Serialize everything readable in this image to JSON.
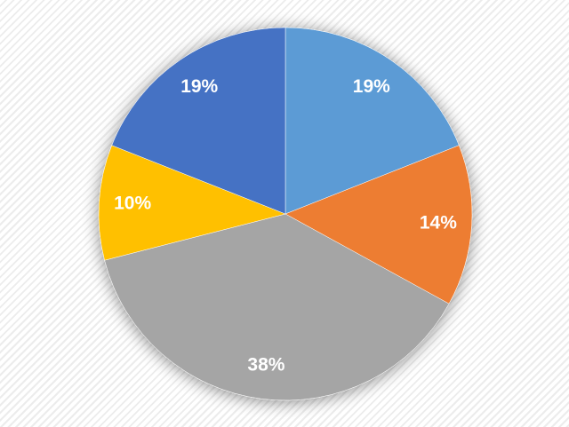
{
  "chart_data": {
    "type": "pie",
    "values": [
      19,
      14,
      38,
      10,
      19
    ],
    "value_labels": [
      "19%",
      "14%",
      "38%",
      "10%",
      "19%"
    ],
    "colors": [
      "#5b9bd5",
      "#ed7d31",
      "#a5a5a5",
      "#ffc000",
      "#4472c4"
    ]
  }
}
